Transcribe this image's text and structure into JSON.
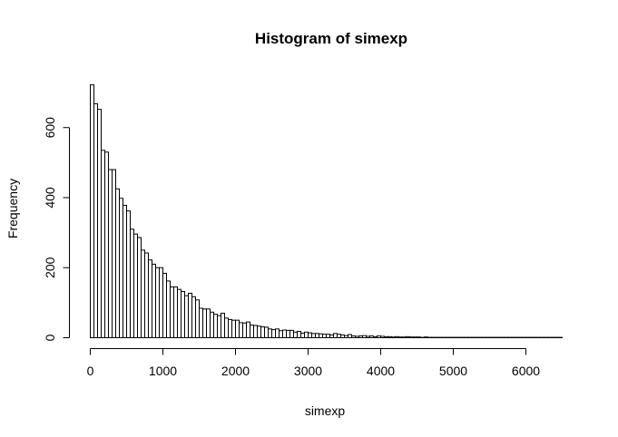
{
  "chart_data": {
    "type": "bar",
    "title": "Histogram of simexp",
    "xlabel": "simexp",
    "ylabel": "Frequency",
    "xlim": [
      0,
      6500
    ],
    "ylim": [
      0,
      730
    ],
    "x_ticks": [
      0,
      1000,
      2000,
      3000,
      4000,
      5000,
      6000
    ],
    "y_ticks": [
      0,
      200,
      400,
      600
    ],
    "bin_width": 50,
    "bin_start": 0,
    "values": [
      722,
      668,
      652,
      535,
      530,
      480,
      480,
      425,
      398,
      378,
      362,
      310,
      296,
      286,
      250,
      242,
      222,
      210,
      200,
      200,
      184,
      162,
      145,
      145,
      138,
      132,
      120,
      127,
      117,
      108,
      84,
      82,
      82,
      73,
      67,
      63,
      70,
      56,
      52,
      50,
      50,
      43,
      42,
      45,
      36,
      35,
      33,
      31,
      30,
      25,
      23,
      25,
      20,
      22,
      21,
      21,
      16,
      18,
      13,
      16,
      14,
      12,
      12,
      11,
      10,
      10,
      8,
      12,
      10,
      8,
      6,
      9,
      5,
      4,
      5,
      6,
      4,
      5,
      3,
      5,
      4,
      3,
      3,
      2,
      3,
      2,
      2,
      3,
      2,
      2,
      2,
      1,
      2,
      1,
      1,
      1,
      1,
      1,
      1,
      1,
      1,
      1,
      1,
      1,
      1,
      1,
      1,
      1,
      1,
      1,
      1,
      1,
      1,
      1,
      1,
      1,
      1,
      1,
      1,
      1,
      1,
      1,
      1,
      1,
      1,
      1,
      1,
      1,
      1,
      1
    ]
  }
}
